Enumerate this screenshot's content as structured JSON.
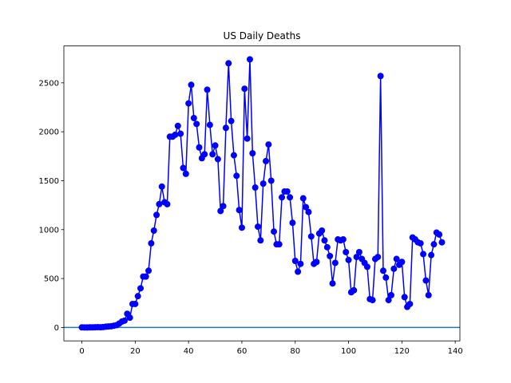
{
  "chart_data": {
    "type": "line",
    "title": "US Daily Deaths",
    "x": [
      0,
      1,
      2,
      3,
      4,
      5,
      6,
      7,
      8,
      9,
      10,
      11,
      12,
      13,
      14,
      15,
      16,
      17,
      18,
      19,
      20,
      21,
      22,
      23,
      24,
      25,
      26,
      27,
      28,
      29,
      30,
      31,
      32,
      33,
      34,
      35,
      36,
      37,
      38,
      39,
      40,
      41,
      42,
      43,
      44,
      45,
      46,
      47,
      48,
      49,
      50,
      51,
      52,
      53,
      54,
      55,
      56,
      57,
      58,
      59,
      60,
      61,
      62,
      63,
      64,
      65,
      66,
      67,
      68,
      69,
      70,
      71,
      72,
      73,
      74,
      75,
      76,
      77,
      78,
      79,
      80,
      81,
      82,
      83,
      84,
      85,
      86,
      87,
      88,
      89,
      90,
      91,
      92,
      93,
      94,
      95,
      96,
      97,
      98,
      99,
      100,
      101,
      102,
      103,
      104,
      105,
      106,
      107,
      108,
      109,
      110,
      111,
      112,
      113,
      114,
      115,
      116,
      117,
      118,
      119,
      120,
      121,
      122,
      123,
      124,
      125,
      126,
      127,
      128,
      129,
      130,
      131,
      132,
      133,
      134,
      135
    ],
    "series": [
      {
        "name": "US Daily Deaths",
        "color": "#0000ff",
        "values": [
          1,
          0,
          0,
          1,
          1,
          2,
          3,
          2,
          4,
          8,
          10,
          12,
          18,
          24,
          40,
          60,
          70,
          140,
          100,
          240,
          240,
          320,
          400,
          520,
          520,
          580,
          860,
          990,
          1150,
          1260,
          1440,
          1280,
          1260,
          1950,
          1950,
          1970,
          2060,
          1980,
          1630,
          1570,
          2290,
          2480,
          2140,
          2080,
          1840,
          1730,
          1770,
          2430,
          2070,
          1770,
          1860,
          1720,
          1190,
          1240,
          2040,
          2700,
          2110,
          1760,
          1550,
          1200,
          1020,
          2440,
          1930,
          2740,
          1780,
          1430,
          1030,
          890,
          1470,
          1700,
          1870,
          1500,
          980,
          850,
          850,
          1330,
          1390,
          1390,
          1330,
          1070,
          680,
          570,
          650,
          1320,
          1230,
          1180,
          930,
          650,
          670,
          960,
          990,
          890,
          820,
          730,
          450,
          660,
          900,
          890,
          900,
          770,
          690,
          360,
          380,
          720,
          770,
          700,
          660,
          620,
          290,
          280,
          700,
          720,
          2570,
          580,
          510,
          280,
          330,
          600,
          700,
          640,
          670,
          310,
          210,
          240,
          920,
          900,
          870,
          860,
          750,
          480,
          330,
          740,
          850,
          970,
          950,
          870
        ]
      }
    ],
    "hline": {
      "value": 0,
      "color": "#1f77b4"
    },
    "xlim": [
      -6.75,
      141.75
    ],
    "xticks": [
      0,
      20,
      40,
      60,
      80,
      100,
      120,
      140
    ],
    "ylim": [
      -137,
      2877
    ],
    "yticks": [
      0,
      500,
      1000,
      1500,
      2000,
      2500
    ]
  }
}
